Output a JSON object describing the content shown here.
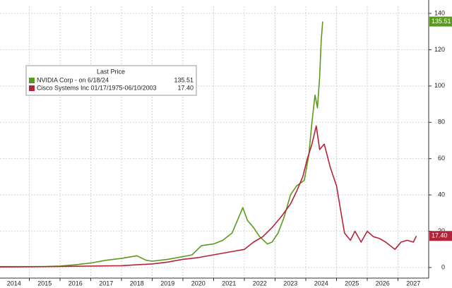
{
  "chart_data": {
    "type": "line",
    "legend_title": "Last Price",
    "xlim": [
      2014,
      2028
    ],
    "xticks": [
      2014,
      2015,
      2016,
      2017,
      2018,
      2019,
      2020,
      2021,
      2022,
      2023,
      2024,
      2025,
      2026,
      2027
    ],
    "ylim": [
      0,
      140
    ],
    "yticks": [
      0,
      20,
      40,
      60,
      80,
      100,
      120,
      140
    ],
    "grid": true,
    "series": [
      {
        "name": "NVIDIA Corp -  on 6/18/24",
        "color": "#5a9a1e",
        "last_price": "135.51",
        "x": [
          2014,
          2014.5,
          2015,
          2015.5,
          2016,
          2016.5,
          2017,
          2017.5,
          2018,
          2018.5,
          2018.8,
          2019,
          2019.5,
          2020,
          2020.3,
          2020.6,
          2021,
          2021.3,
          2021.6,
          2021.8,
          2021.95,
          2022.1,
          2022.3,
          2022.5,
          2022.75,
          2022.9,
          2023.1,
          2023.3,
          2023.5,
          2023.7,
          2023.95,
          2024.1,
          2024.2,
          2024.3,
          2024.38,
          2024.45,
          2024.5,
          2024.55
        ],
        "values": [
          0.5,
          0.5,
          0.5,
          0.6,
          0.8,
          1.5,
          2.5,
          4,
          5,
          6.5,
          4,
          3.5,
          4.5,
          6,
          7,
          12,
          13,
          15,
          19,
          27,
          33,
          26,
          22,
          17,
          13,
          14,
          19,
          28,
          40,
          45,
          48,
          62,
          80,
          95,
          88,
          105,
          125,
          135.51
        ]
      },
      {
        "name": "Cisco Systems Inc 01/17/1975-06/10/2003",
        "color": "#b5233a",
        "last_price": "17.40",
        "x": [
          2014,
          2015,
          2016,
          2017,
          2018,
          2018.5,
          2019,
          2019.5,
          2020,
          2020.5,
          2021,
          2021.5,
          2022,
          2022.3,
          2022.6,
          2022.9,
          2023.2,
          2023.5,
          2023.7,
          2023.9,
          2024.05,
          2024.2,
          2024.34,
          2024.45,
          2024.6,
          2024.8,
          2025.0,
          2025.15,
          2025.26,
          2025.45,
          2025.6,
          2025.8,
          2026.0,
          2026.2,
          2026.4,
          2026.6,
          2026.9,
          2027.1,
          2027.3,
          2027.5,
          2027.6
        ],
        "values": [
          0.3,
          0.4,
          0.6,
          0.8,
          1,
          1.5,
          2,
          3,
          4.5,
          5.5,
          7,
          8.5,
          10,
          14,
          17,
          22,
          28,
          35,
          42,
          50,
          60,
          68,
          78,
          65,
          68,
          55,
          45,
          30,
          19,
          15,
          20,
          14,
          20,
          17,
          16,
          14,
          10,
          14,
          15,
          14,
          17.4
        ]
      }
    ]
  }
}
